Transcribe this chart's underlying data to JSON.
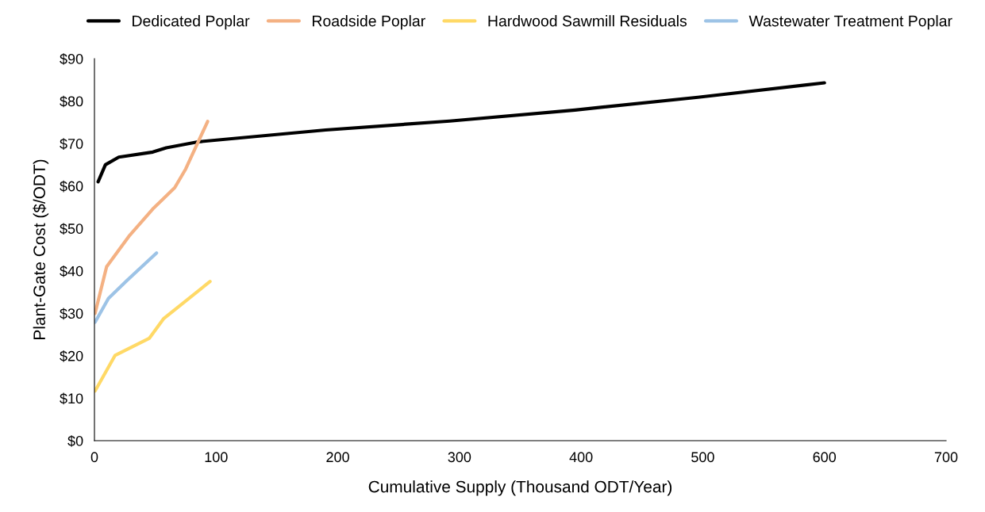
{
  "chart_data": {
    "type": "line",
    "xlabel": "Cumulative Supply (Thousand ODT/Year)",
    "ylabel": "Plant-Gate Cost ($/ODT)",
    "xlim": [
      0,
      700
    ],
    "xticks": [
      0,
      100,
      200,
      300,
      400,
      500,
      600,
      700
    ],
    "ylim": [
      0,
      90
    ],
    "yticks": [
      {
        "value": 0,
        "label": "$0"
      },
      {
        "value": 10,
        "label": "$10"
      },
      {
        "value": 20,
        "label": "$20"
      },
      {
        "value": 30,
        "label": "$30"
      },
      {
        "value": 40,
        "label": "$40"
      },
      {
        "value": 50,
        "label": "$50"
      },
      {
        "value": 60,
        "label": "$60"
      },
      {
        "value": 70,
        "label": "$70"
      },
      {
        "value": 80,
        "label": "$80"
      },
      {
        "value": 90,
        "label": "$90"
      }
    ],
    "grid": false,
    "legend": "top",
    "marker": "none",
    "line_style": "solid",
    "series": [
      {
        "name": "Dedicated Poplar",
        "color": "#000000",
        "x": [
          3,
          9,
          20,
          48,
          59,
          85,
          190,
          292,
          395,
          496,
          600
        ],
        "values": [
          61,
          65,
          66.8,
          68,
          69,
          70.4,
          73.2,
          75.3,
          77.9,
          80.9,
          84.3
        ]
      },
      {
        "name": "Roadside Poplar",
        "color": "#f4b183",
        "x": [
          0.5,
          10,
          29,
          48,
          66,
          75,
          93
        ],
        "values": [
          30,
          41,
          48.4,
          54.6,
          59.6,
          64,
          75.2
        ]
      },
      {
        "name": "Hardwood Sawmill Residuals",
        "color": "#ffd966",
        "x": [
          0.5,
          17,
          45,
          57,
          95
        ],
        "values": [
          11.7,
          20.1,
          24.1,
          28.8,
          37.5
        ]
      },
      {
        "name": "Wastewater Treatment Poplar",
        "color": "#9dc3e6",
        "x": [
          0.5,
          11.5,
          27,
          51
        ],
        "values": [
          27.9,
          33.5,
          37.8,
          44.2
        ]
      }
    ]
  }
}
